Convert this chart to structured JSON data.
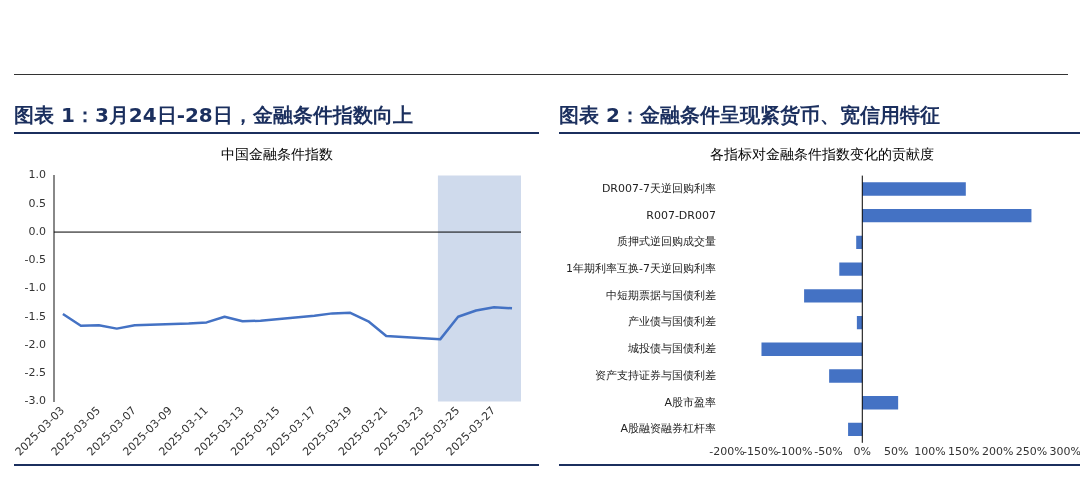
{
  "chart_data": [
    {
      "type": "line",
      "title": "图表 1：3月24日-28日，金融条件指数向上",
      "subtitle": "中国金融条件指数",
      "series": [
        {
          "color": "#4472c4",
          "x": [
            "2025-03-03",
            "2025-03-04",
            "2025-03-05",
            "2025-03-06",
            "2025-03-07",
            "2025-03-10",
            "2025-03-11",
            "2025-03-12",
            "2025-03-13",
            "2025-03-14",
            "2025-03-17",
            "2025-03-18",
            "2025-03-19",
            "2025-03-20",
            "2025-03-21",
            "2025-03-24",
            "2025-03-25",
            "2025-03-26",
            "2025-03-27",
            "2025-03-28"
          ],
          "values": [
            -1.45,
            -1.66,
            -1.65,
            -1.71,
            -1.65,
            -1.62,
            -1.6,
            -1.5,
            -1.58,
            -1.57,
            -1.48,
            -1.44,
            -1.43,
            -1.58,
            -1.84,
            -1.9,
            -1.5,
            -1.39,
            -1.33,
            -1.35
          ]
        }
      ],
      "xlim": [
        "2025-03-02T12:00",
        "2025-03-28T12:00"
      ],
      "xticks": [
        "2025-03-03",
        "2025-03-05",
        "2025-03-07",
        "2025-03-09",
        "2025-03-11",
        "2025-03-13",
        "2025-03-15",
        "2025-03-17",
        "2025-03-19",
        "2025-03-21",
        "2025-03-23",
        "2025-03-25",
        "2025-03-27"
      ],
      "ylim": [
        -3,
        1
      ],
      "yticks": [
        {
          "value": -3,
          "label": "-3.0"
        },
        {
          "value": -2.5,
          "label": "-2.5"
        },
        {
          "value": -2,
          "label": "-2.0"
        },
        {
          "value": -1.5,
          "label": "-1.5"
        },
        {
          "value": -1,
          "label": "-1.0"
        },
        {
          "value": -0.5,
          "label": "-0.5"
        },
        {
          "value": 0,
          "label": "0.0"
        },
        {
          "value": 0.5,
          "label": "0.5"
        },
        {
          "value": 1,
          "label": "1.0"
        }
      ],
      "ref_lines": [
        {
          "axis": "y",
          "value": 0,
          "color": "#000000"
        }
      ],
      "bands": [
        {
          "axis": "x",
          "from": "2025-03-23T21:00",
          "to": "2025-03-28T12:00",
          "color": "#cfdaec"
        }
      ],
      "grid": false,
      "legend": false,
      "marker": "none",
      "line_style": "solid"
    },
    {
      "type": "bar",
      "orientation": "horizontal",
      "title": "图表 2：金融条件呈现紧货币、宽信用特征",
      "subtitle": "各指标对金融条件指数变化的贡献度",
      "categories": [
        "DR007-7天逆回购利率",
        "R007-DR007",
        "质押式逆回购成交量",
        "1年期利率互换-7天逆回购利率",
        "中短期票据与国债利差",
        "产业债与国债利差",
        "城投债与国债利差",
        "资产支持证券与国债利差",
        "A股市盈率",
        "A股融资融券杠杆率"
      ],
      "values": [
        153,
        250,
        -9,
        -34,
        -86,
        -8,
        -149,
        -49,
        53,
        -21
      ],
      "color": "#4472c4",
      "xlim": [
        -200,
        300
      ],
      "xticks": [
        {
          "value": -200,
          "label": "-200%"
        },
        {
          "value": -150,
          "label": "-150%"
        },
        {
          "value": -100,
          "label": "-100%"
        },
        {
          "value": -50,
          "label": "-50%"
        },
        {
          "value": 0,
          "label": "0%"
        },
        {
          "value": 50,
          "label": "50%"
        },
        {
          "value": 100,
          "label": "100%"
        },
        {
          "value": 150,
          "label": "150%"
        },
        {
          "value": 200,
          "label": "200%"
        },
        {
          "value": 250,
          "label": "250%"
        },
        {
          "value": 300,
          "label": "300%"
        }
      ],
      "ref_lines": [
        {
          "axis": "x",
          "value": 0,
          "color": "#000000"
        }
      ],
      "grid": false,
      "legend": false
    }
  ]
}
